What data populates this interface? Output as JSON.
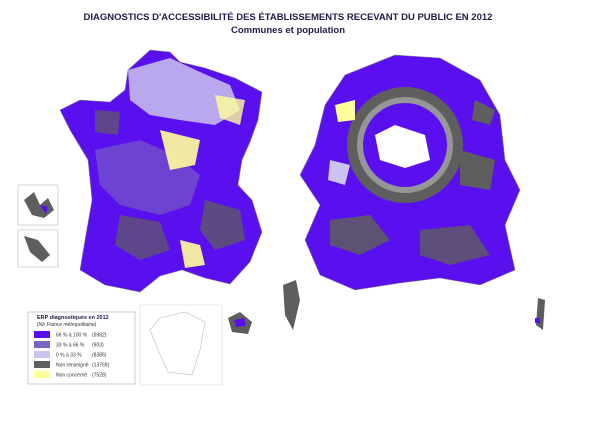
{
  "header": {
    "title": "DIAGNOSTICS D'ACCESSIBILITÉ DES ÉTABLISSEMENTS RECEVANT DU PUBLIC EN 2012",
    "subtitle": "Communes et population"
  },
  "legend": {
    "title": "ERP diagnostiqués en 2012",
    "subtitle": "(Nb France métropolitaine)",
    "items": [
      {
        "label": "66 % à 100 %",
        "count": "(5982)",
        "color": "#5a10ee"
      },
      {
        "label": "33 % à 66 %",
        "count": "(903)",
        "color": "#7a66c0"
      },
      {
        "label": "0 % à 33 %",
        "count": "(8385)",
        "color": "#cbc3ef"
      },
      {
        "label": "Non renseigné",
        "count": "(13769)",
        "color": "#5e5e5e"
      },
      {
        "label": "Non concerné",
        "count": "(7528)",
        "color": "#ffff99"
      }
    ]
  }
}
